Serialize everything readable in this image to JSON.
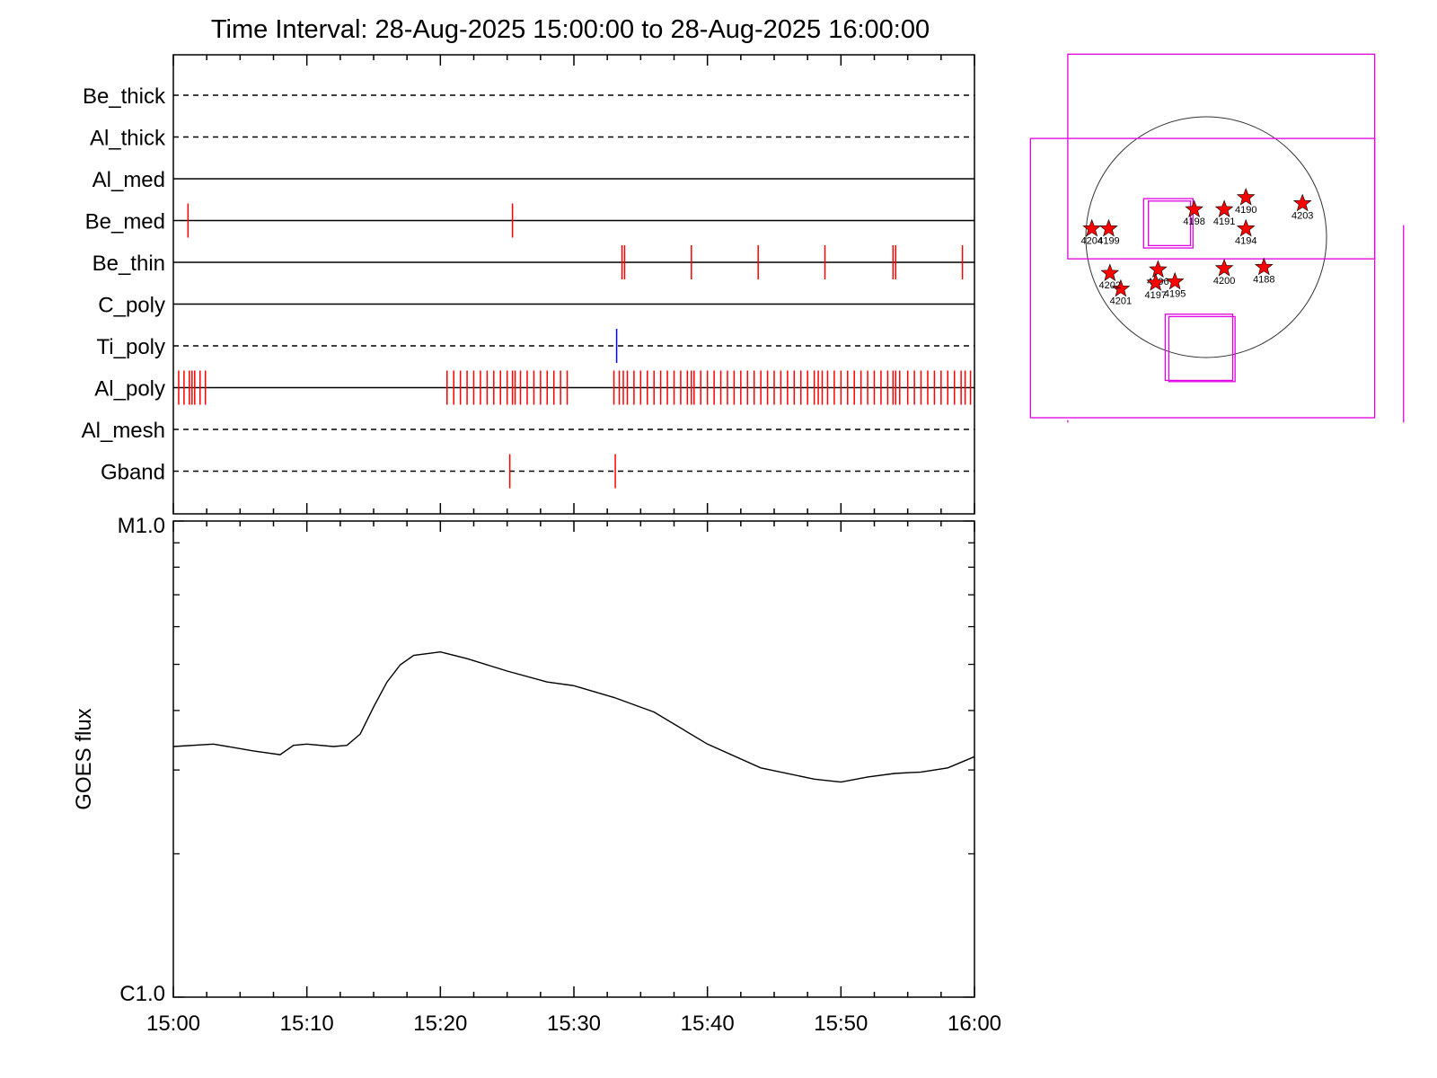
{
  "colors": {
    "event_red": "#ff0000",
    "event_blue": "#0000ff",
    "box_magenta": "#e000e0",
    "axis": "#000000",
    "curve": "#000000"
  },
  "chart_data": [
    {
      "type": "timeline",
      "title": "Time Interval: 28-Aug-2025 15:00:00 to 28-Aug-2025 16:00:00",
      "x_range_minutes": [
        0,
        60
      ],
      "rows": [
        {
          "name": "Be_thick",
          "style": "dashed",
          "events": []
        },
        {
          "name": "Al_thick",
          "style": "dashed",
          "events": []
        },
        {
          "name": "Al_med",
          "style": "solid",
          "events": []
        },
        {
          "name": "Be_med",
          "style": "solid",
          "events": [
            1.1,
            25.4
          ]
        },
        {
          "name": "Be_thin",
          "style": "solid",
          "events": [
            33.6,
            33.8,
            38.8,
            43.8,
            48.8,
            53.9,
            54.1,
            59.1
          ]
        },
        {
          "name": "C_poly",
          "style": "solid",
          "events": []
        },
        {
          "name": "Ti_poly",
          "style": "dashed",
          "events": [
            33.2
          ],
          "event_color": "blue"
        },
        {
          "name": "Al_poly",
          "style": "solid",
          "events": [
            0.4,
            0.8,
            1.2,
            1.4,
            1.6,
            2.0,
            2.4,
            20.5,
            21.0,
            21.5,
            22.0,
            22.5,
            23.0,
            23.5,
            24.0,
            24.5,
            25.0,
            25.4,
            25.6,
            26.0,
            26.5,
            27.0,
            27.5,
            28.0,
            28.5,
            29.0,
            29.5,
            33.0,
            33.4,
            33.7,
            34.0,
            34.5,
            35.0,
            35.5,
            36.0,
            36.5,
            37.0,
            37.5,
            38.0,
            38.5,
            38.8,
            39.0,
            39.5,
            40.0,
            40.5,
            41.0,
            41.5,
            42.0,
            42.5,
            43.0,
            43.5,
            44.0,
            44.5,
            45.0,
            45.5,
            46.0,
            46.5,
            47.0,
            47.5,
            48.0,
            48.3,
            48.6,
            49.0,
            49.5,
            50.0,
            50.5,
            51.0,
            51.5,
            52.0,
            52.5,
            53.0,
            53.5,
            53.9,
            54.1,
            54.4,
            55.0,
            55.5,
            56.0,
            56.5,
            57.0,
            57.5,
            58.0,
            58.5,
            59.0,
            59.3,
            59.7
          ]
        },
        {
          "name": "Al_mesh",
          "style": "dashed",
          "events": []
        },
        {
          "name": "Gband",
          "style": "dashed",
          "events": [
            25.2,
            33.1
          ]
        }
      ]
    },
    {
      "type": "line",
      "ylabel": "GOES flux",
      "y_scale": "log",
      "ylim": [
        1e-06,
        1e-05
      ],
      "y_tick_labels": [
        "C1.0",
        "M1.0"
      ],
      "x_tick_labels": [
        "15:00",
        "15:10",
        "15:20",
        "15:30",
        "15:40",
        "15:50",
        "16:00"
      ],
      "x_range_minutes": [
        0,
        60
      ],
      "x": [
        0,
        3,
        6,
        8,
        9,
        10,
        12,
        13,
        14,
        15,
        16,
        17,
        18,
        20,
        22,
        25,
        28,
        30,
        33,
        36,
        40,
        44,
        48,
        50,
        52,
        54,
        56,
        58,
        60
      ],
      "values": [
        3.36e-06,
        3.4e-06,
        3.29e-06,
        3.23e-06,
        3.38e-06,
        3.4e-06,
        3.36e-06,
        3.38e-06,
        3.57e-06,
        4.07e-06,
        4.59e-06,
        4.99e-06,
        5.22e-06,
        5.31e-06,
        5.14e-06,
        4.84e-06,
        4.59e-06,
        4.51e-06,
        4.26e-06,
        3.97e-06,
        3.4e-06,
        3.03e-06,
        2.87e-06,
        2.83e-06,
        2.9e-06,
        2.95e-06,
        2.97e-06,
        3.03e-06,
        3.2e-06
      ]
    },
    {
      "type": "scatter",
      "description_of_marks": "solar disk with active region stars and observation boxes",
      "regions": [
        {
          "id": "4188",
          "x": 0.48,
          "y": -0.25
        },
        {
          "id": "4190",
          "x": 0.33,
          "y": 0.33
        },
        {
          "id": "4191",
          "x": 0.15,
          "y": 0.23
        },
        {
          "id": "4194",
          "x": 0.33,
          "y": 0.07
        },
        {
          "id": "4195",
          "x": -0.26,
          "y": -0.37
        },
        {
          "id": "4196",
          "x": -0.4,
          "y": -0.27
        },
        {
          "id": "4197",
          "x": -0.42,
          "y": -0.38
        },
        {
          "id": "4198",
          "x": -0.1,
          "y": 0.23
        },
        {
          "id": "4199",
          "x": -0.81,
          "y": 0.07
        },
        {
          "id": "4200",
          "x": 0.15,
          "y": -0.26
        },
        {
          "id": "4201",
          "x": -0.71,
          "y": -0.43
        },
        {
          "id": "4202",
          "x": -0.8,
          "y": -0.3
        },
        {
          "id": "4203",
          "x": 0.8,
          "y": 0.28
        },
        {
          "id": "4204",
          "x": -0.95,
          "y": 0.07
        }
      ]
    }
  ]
}
